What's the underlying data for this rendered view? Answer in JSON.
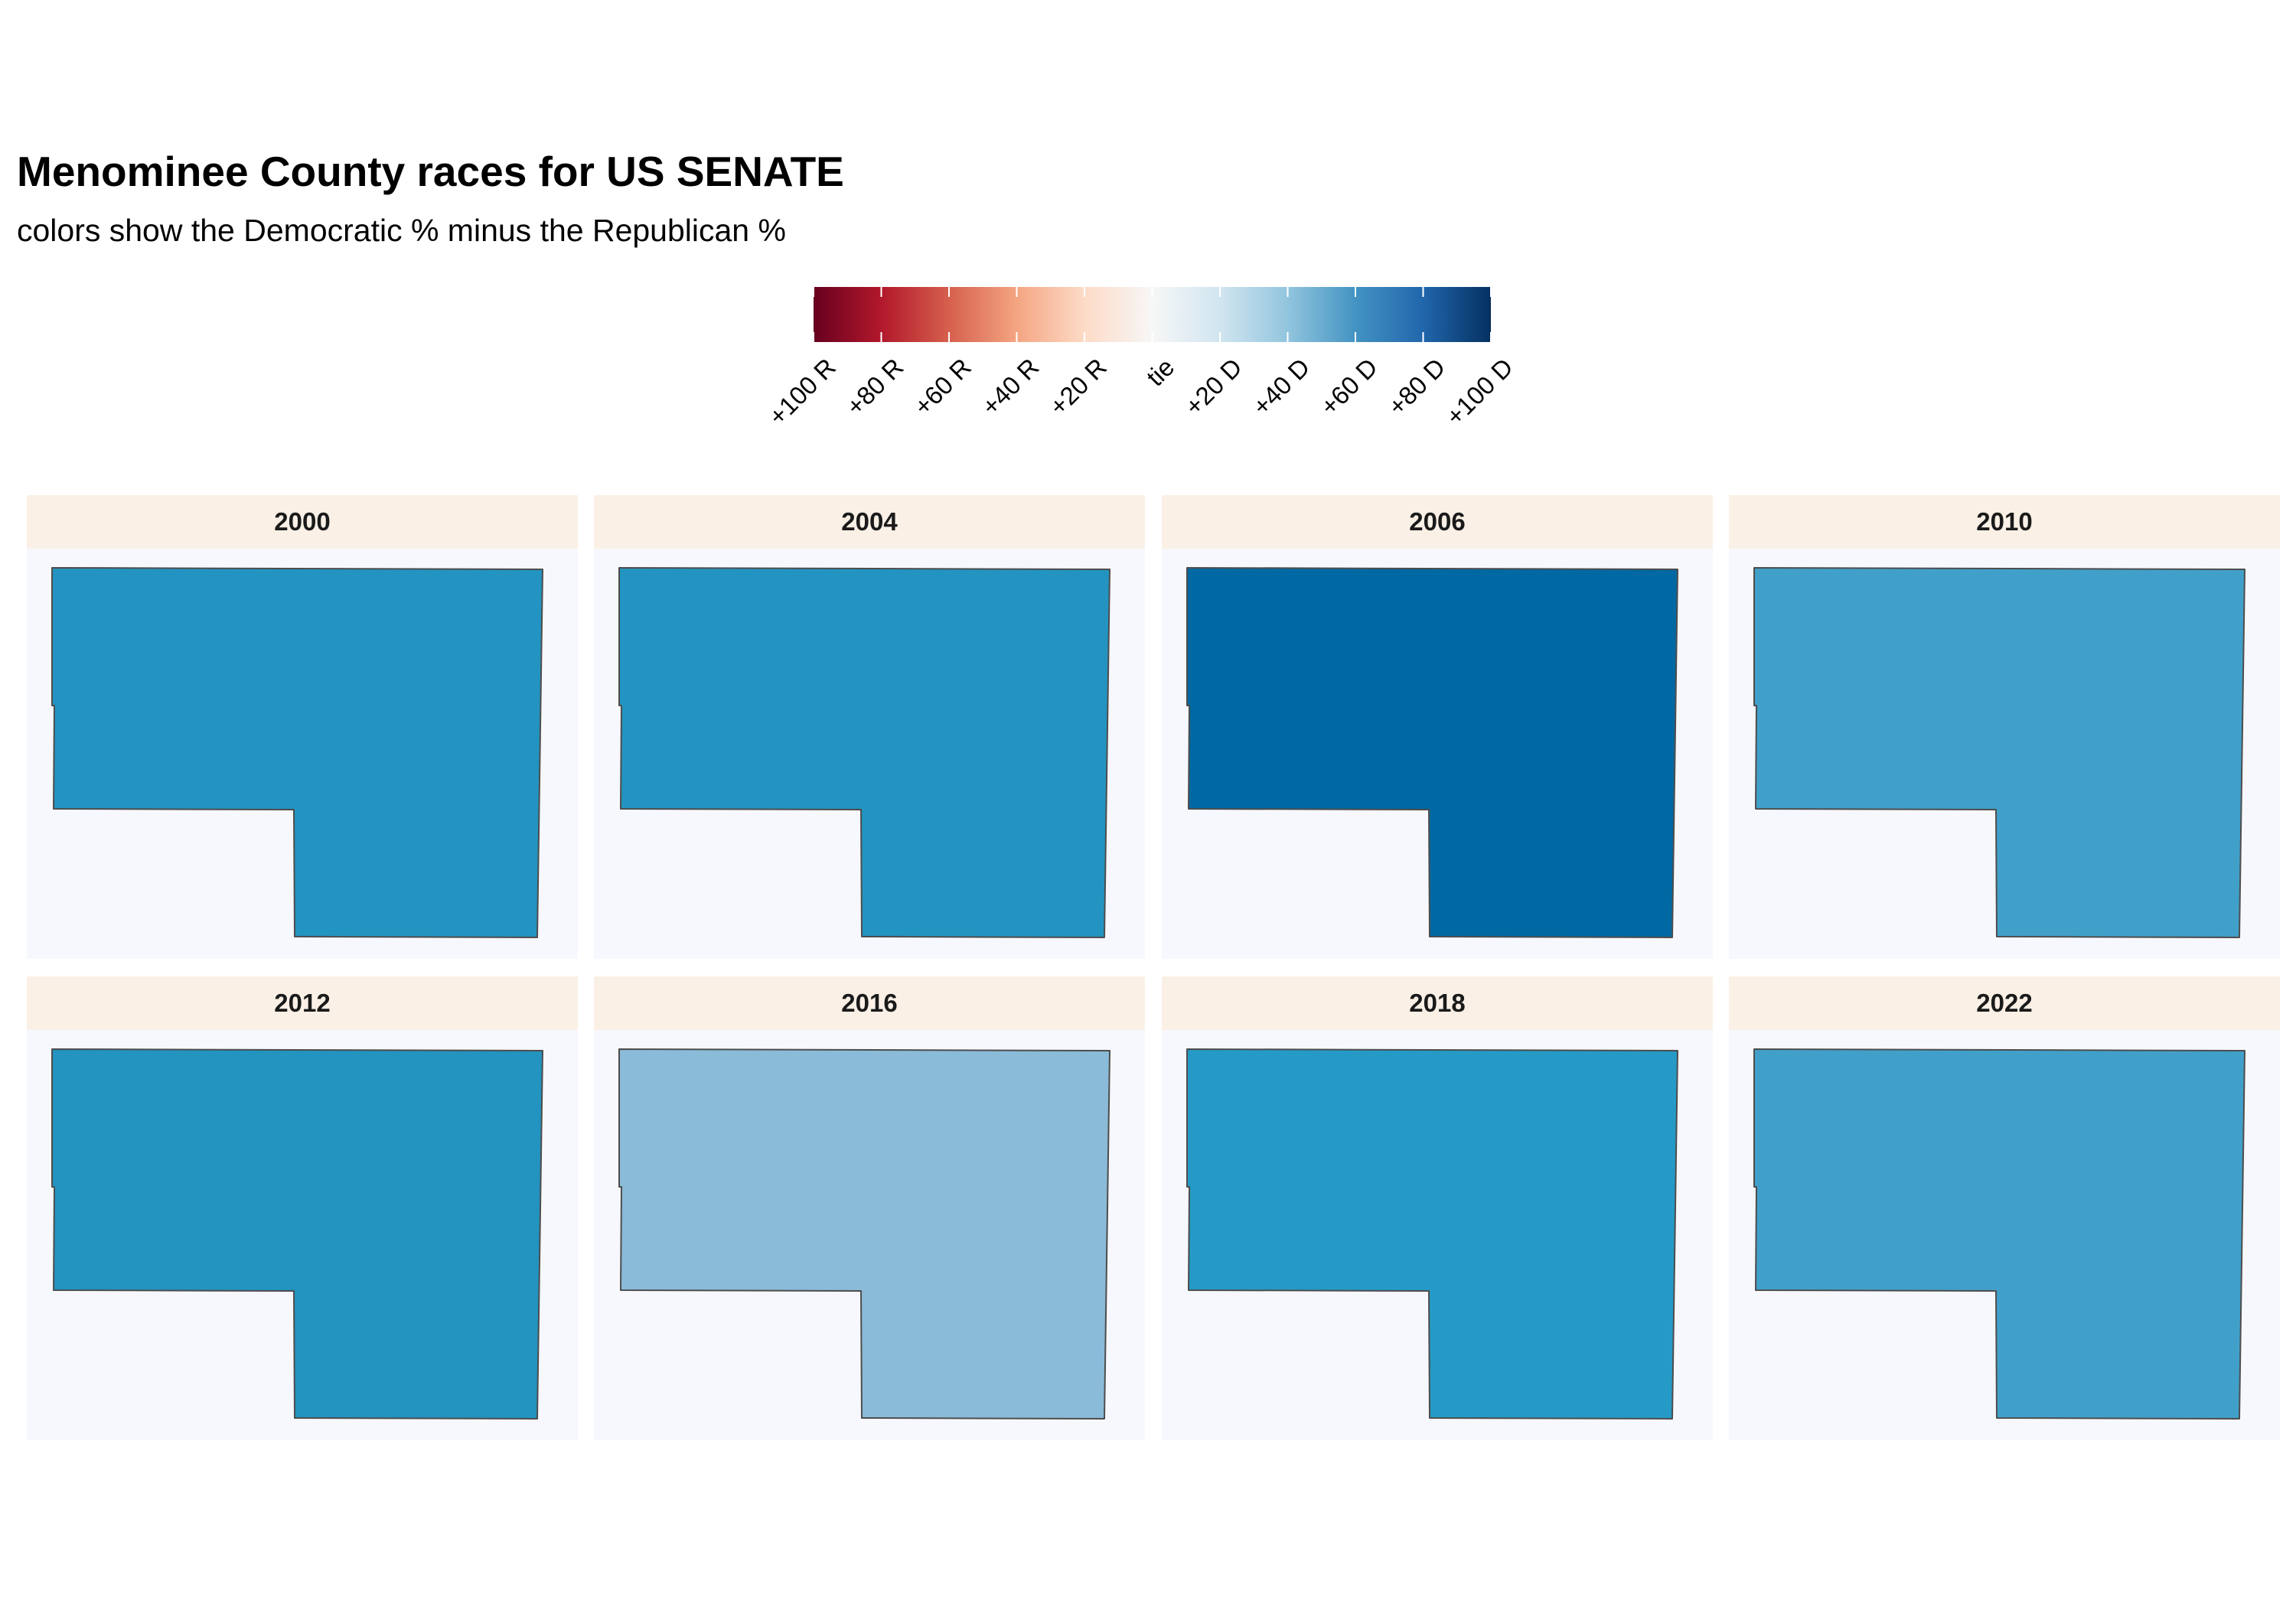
{
  "header": {
    "title": "Menominee County races for US SENATE",
    "subtitle": "colors show the Democratic % minus the Republican %"
  },
  "legend": {
    "title": "",
    "position": "top-center",
    "scale": "diverging red-white-blue",
    "min": -100,
    "max": 100,
    "ticks": [
      {
        "value": -100,
        "label": "+100 R"
      },
      {
        "value": -80,
        "label": "+80 R"
      },
      {
        "value": -60,
        "label": "+60 R"
      },
      {
        "value": -40,
        "label": "+40 R"
      },
      {
        "value": -20,
        "label": "+20 R"
      },
      {
        "value": 0,
        "label": "tie"
      },
      {
        "value": 20,
        "label": "+20 D"
      },
      {
        "value": 40,
        "label": "+40 D"
      },
      {
        "value": 60,
        "label": "+60 D"
      },
      {
        "value": 80,
        "label": "+80 D"
      },
      {
        "value": 100,
        "label": "+100 D"
      }
    ],
    "color_stops": [
      {
        "value": -100,
        "color": "#67001f"
      },
      {
        "value": -80,
        "color": "#b2182b"
      },
      {
        "value": -60,
        "color": "#d6604d"
      },
      {
        "value": -40,
        "color": "#f4a582"
      },
      {
        "value": -20,
        "color": "#fddbc7"
      },
      {
        "value": 0,
        "color": "#f7f7f7"
      },
      {
        "value": 20,
        "color": "#d1e5f0"
      },
      {
        "value": 40,
        "color": "#92c5de"
      },
      {
        "value": 60,
        "color": "#4393c3"
      },
      {
        "value": 80,
        "color": "#2166ac"
      },
      {
        "value": 100,
        "color": "#053061"
      }
    ]
  },
  "chart_data": {
    "type": "choropleth facets",
    "region": "Menominee County",
    "measure": "Democratic % minus Republican %",
    "facets": [
      {
        "year": "2000",
        "margin": 68,
        "color": "#2394c1"
      },
      {
        "year": "2004",
        "margin": 68,
        "color": "#2394c1"
      },
      {
        "year": "2006",
        "margin": 86,
        "color": "#0069a3"
      },
      {
        "year": "2010",
        "margin": 60,
        "color": "#41a0ca"
      },
      {
        "year": "2012",
        "margin": 68,
        "color": "#2393c0"
      },
      {
        "year": "2016",
        "margin": 44,
        "color": "#8abbd8"
      },
      {
        "year": "2018",
        "margin": 66,
        "color": "#259ac6"
      },
      {
        "year": "2022",
        "margin": 60,
        "color": "#41a0ca"
      }
    ]
  }
}
